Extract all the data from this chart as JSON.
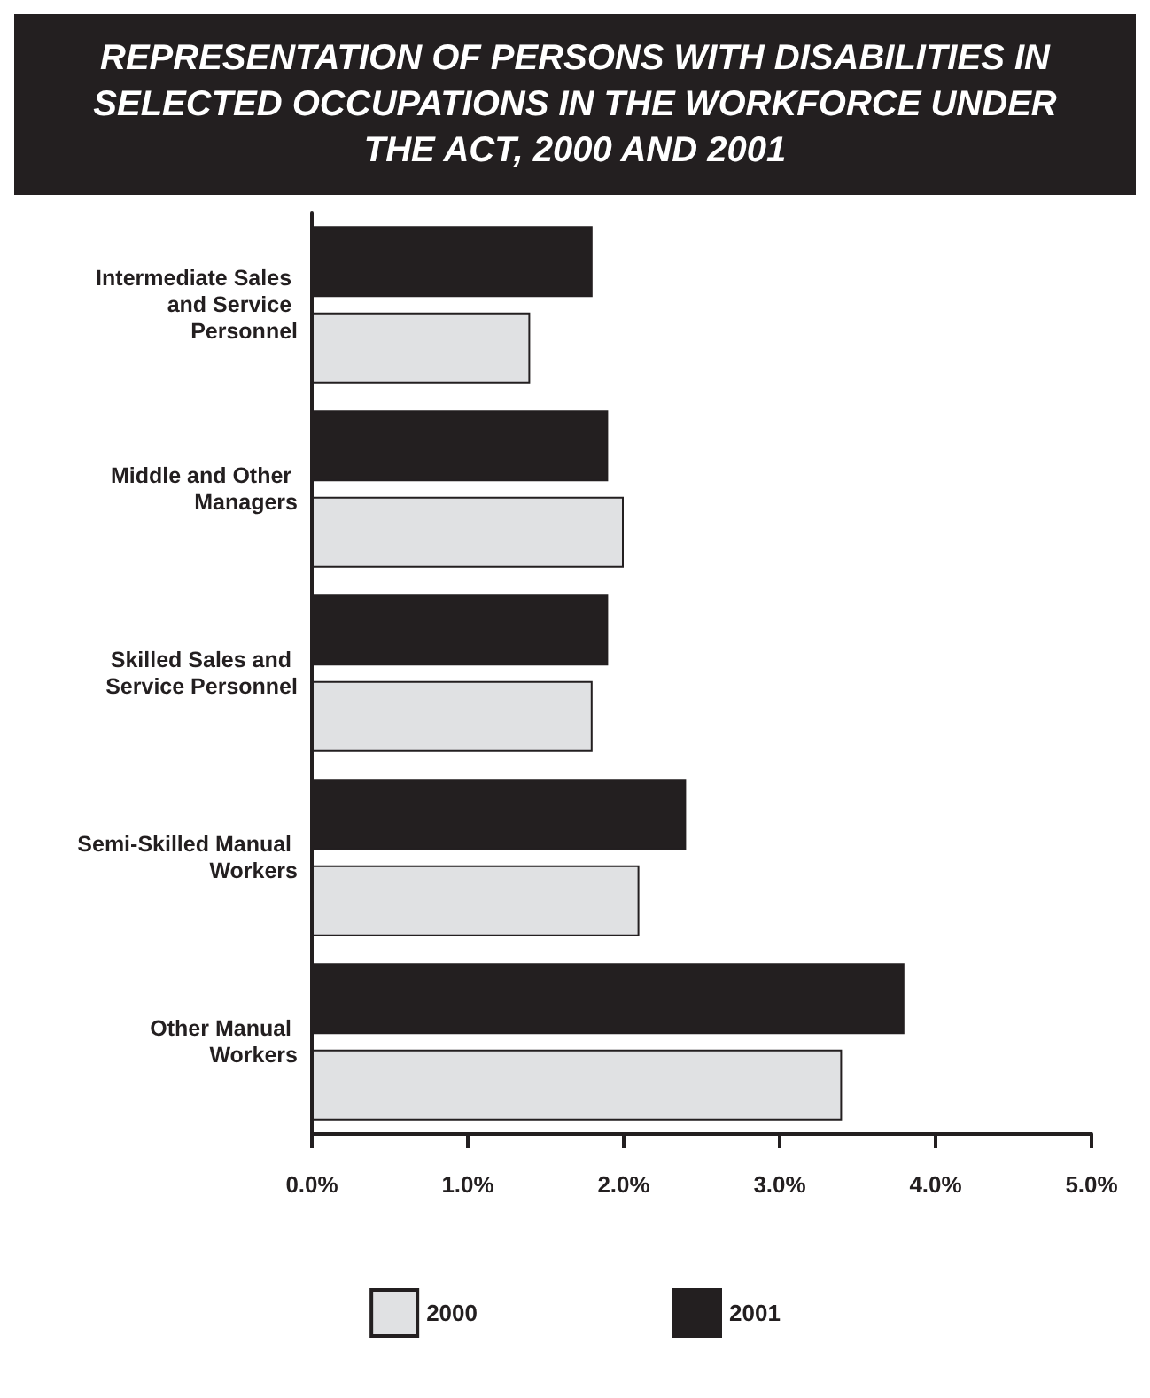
{
  "chart_data": {
    "type": "bar",
    "orientation": "horizontal",
    "title": "REPRESENTATION OF PERSONS WITH DISABILITIES IN SELECTED OCCUPATIONS IN THE WORKFORCE UNDER THE ACT, 2000 AND 2001",
    "categories": [
      "Intermediate Sales and Service Personnel",
      "Middle and Other Managers",
      "Skilled Sales and Service Personnel",
      "Semi-Skilled Manual Workers",
      "Other Manual Workers"
    ],
    "series": [
      {
        "name": "2000",
        "color": "#e0e1e3",
        "values": [
          1.4,
          2.0,
          1.8,
          2.1,
          3.4
        ]
      },
      {
        "name": "2001",
        "color": "#231f20",
        "values": [
          1.8,
          1.9,
          1.9,
          2.4,
          3.8
        ]
      }
    ],
    "xlim": [
      0,
      5
    ],
    "xticks": [
      {
        "value": 0,
        "label": "0.0%"
      },
      {
        "value": 1,
        "label": "1.0%"
      },
      {
        "value": 2,
        "label": "2.0%"
      },
      {
        "value": 3,
        "label": "3.0%"
      },
      {
        "value": 4,
        "label": "4.0%"
      },
      {
        "value": 5,
        "label": "5.0%"
      }
    ],
    "grid": false,
    "legend": "bottom"
  }
}
